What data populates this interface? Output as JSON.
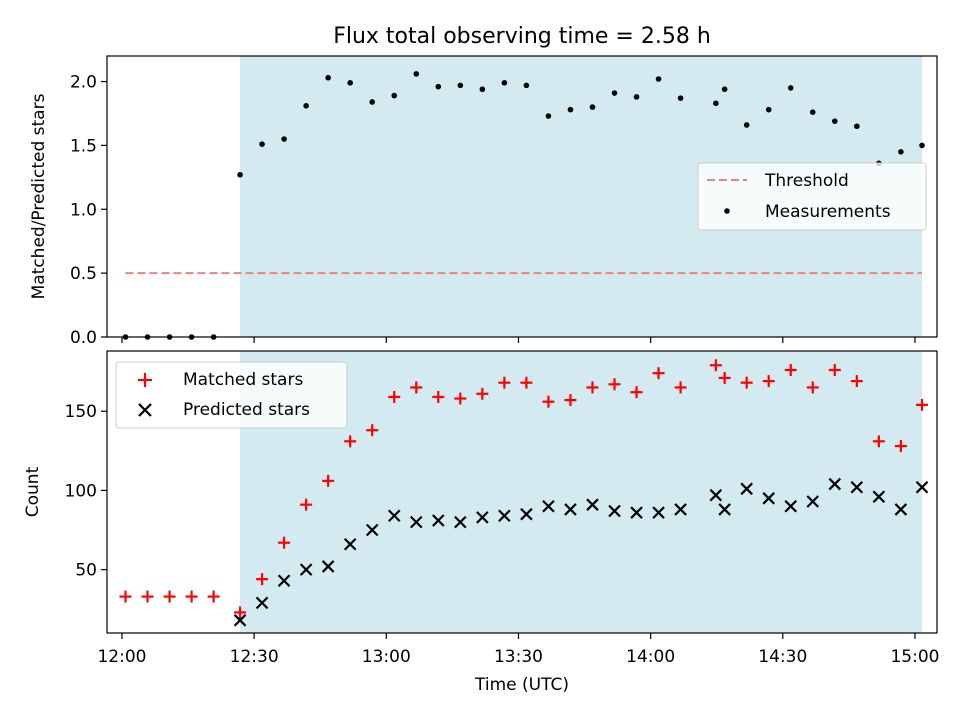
{
  "chart_data": {
    "type": "scatter",
    "title": "Flux total observing time = 2.58 h",
    "xlabel": "Time (UTC)",
    "x_ticks": [
      {
        "label": "12:00",
        "min": 0
      },
      {
        "label": "12:30",
        "min": 30
      },
      {
        "label": "13:00",
        "min": 60
      },
      {
        "label": "13:30",
        "min": 90
      },
      {
        "label": "14:00",
        "min": 120
      },
      {
        "label": "14:30",
        "min": 150
      },
      {
        "label": "15:00",
        "min": 180
      }
    ],
    "xlim": [
      -3.4,
      185
    ],
    "observing_span": {
      "start_min": 26.8,
      "end_min": 181.6
    },
    "x_minutes": [
      0.8,
      5.8,
      10.8,
      15.8,
      20.8,
      26.8,
      31.8,
      36.8,
      41.8,
      46.8,
      51.8,
      56.8,
      61.8,
      66.8,
      71.8,
      76.8,
      81.8,
      86.8,
      91.8,
      96.8,
      101.8,
      106.8,
      111.8,
      116.8,
      121.8,
      126.8,
      134.8,
      136.8,
      141.8,
      146.8,
      151.8,
      156.8,
      161.8,
      166.8,
      171.8,
      176.8,
      181.6
    ],
    "panels": [
      {
        "ylabel": "Matched/Predicted stars",
        "ylim": [
          0,
          2.2
        ],
        "y_ticks": [
          {
            "label": "0.0",
            "value": 0
          },
          {
            "label": "0.5",
            "value": 0.5
          },
          {
            "label": "1.0",
            "value": 1.0
          },
          {
            "label": "1.5",
            "value": 1.5
          },
          {
            "label": "2.0",
            "value": 2.0
          }
        ],
        "threshold": {
          "name": "Threshold",
          "value": 0.5,
          "x_range": [
            0.8,
            181.6
          ],
          "color": "#f08080"
        },
        "series": [
          {
            "name": "Measurements",
            "marker": "dot",
            "color": "#000000",
            "values": [
              0,
              0,
              0,
              0,
              0,
              1.27,
              1.51,
              1.55,
              1.81,
              2.03,
              1.99,
              1.84,
              1.89,
              2.06,
              1.96,
              1.97,
              1.94,
              1.99,
              1.97,
              1.73,
              1.78,
              1.8,
              1.91,
              1.88,
              2.02,
              1.87,
              1.83,
              1.94,
              1.66,
              1.78,
              1.95,
              1.76,
              1.69,
              1.65,
              1.36,
              1.45,
              1.5
            ]
          }
        ],
        "legend": {
          "location": "center-right",
          "entries": [
            "Threshold",
            "Measurements"
          ]
        }
      },
      {
        "ylabel": "Count",
        "ylim": [
          10,
          188
        ],
        "y_ticks": [
          {
            "label": "50",
            "value": 50
          },
          {
            "label": "100",
            "value": 100
          },
          {
            "label": "150",
            "value": 150
          }
        ],
        "series": [
          {
            "name": "Matched stars",
            "marker": "plus",
            "color": "#ff0000",
            "values": [
              33,
              33,
              33,
              33,
              33,
              23,
              44,
              67,
              91,
              106,
              131,
              138,
              159,
              165,
              159,
              158,
              161,
              168,
              168,
              156,
              157,
              165,
              167,
              162,
              174,
              165,
              179,
              171,
              168,
              169,
              176,
              165,
              176,
              169,
              131,
              128,
              154
            ]
          },
          {
            "name": "Predicted stars",
            "marker": "x",
            "color": "#000000",
            "values": [
              null,
              null,
              null,
              null,
              null,
              18,
              29,
              43,
              50,
              52,
              66,
              75,
              84,
              80,
              81,
              80,
              83,
              84,
              85,
              90,
              88,
              91,
              87,
              86,
              86,
              88,
              97,
              88,
              101,
              95,
              90,
              93,
              104,
              102,
              96,
              88,
              102
            ]
          }
        ],
        "legend": {
          "location": "top-left",
          "entries": [
            "Matched stars",
            "Predicted stars"
          ]
        }
      }
    ]
  },
  "colors": {
    "span_fill": "#d3eaf0",
    "matched": "#ff0000",
    "predicted": "#000000",
    "measurement": "#000000",
    "threshold": "#f08080"
  }
}
